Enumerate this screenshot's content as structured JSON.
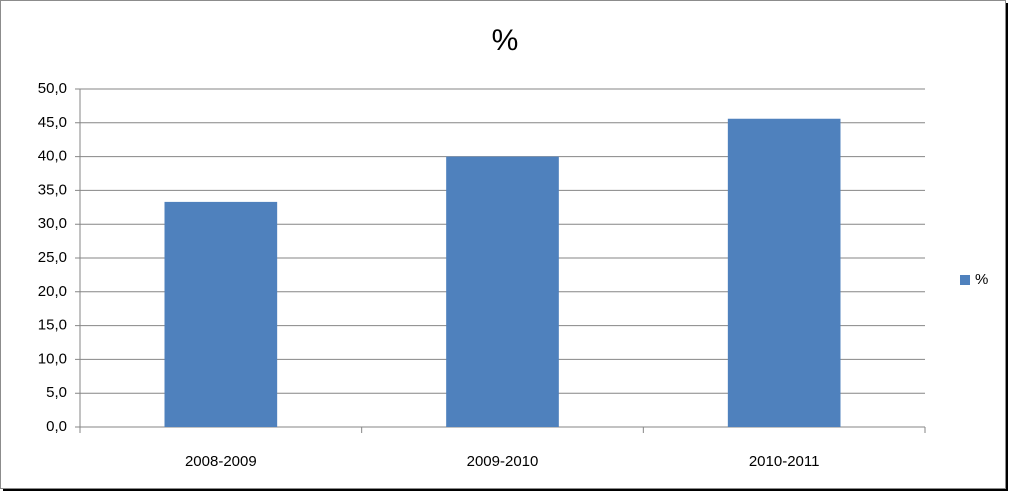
{
  "chart_data": {
    "type": "bar",
    "title": "%",
    "categories": [
      "2008-2009",
      "2009-2010",
      "2010-2011"
    ],
    "series": [
      {
        "name": "%",
        "color": "#4f81bd",
        "values": [
          33.3,
          40.0,
          45.6
        ]
      }
    ],
    "ylim": [
      0,
      50
    ],
    "yticks": [
      {
        "value": 0,
        "label": "0,0"
      },
      {
        "value": 5,
        "label": "5,0"
      },
      {
        "value": 10,
        "label": "10,0"
      },
      {
        "value": 15,
        "label": "15,0"
      },
      {
        "value": 20,
        "label": "20,0"
      },
      {
        "value": 25,
        "label": "25,0"
      },
      {
        "value": 30,
        "label": "30,0"
      },
      {
        "value": 35,
        "label": "35,0"
      },
      {
        "value": 40,
        "label": "40,0"
      },
      {
        "value": 45,
        "label": "45,0"
      },
      {
        "value": 50,
        "label": "50,0"
      }
    ],
    "grid": true,
    "legend": "right"
  }
}
